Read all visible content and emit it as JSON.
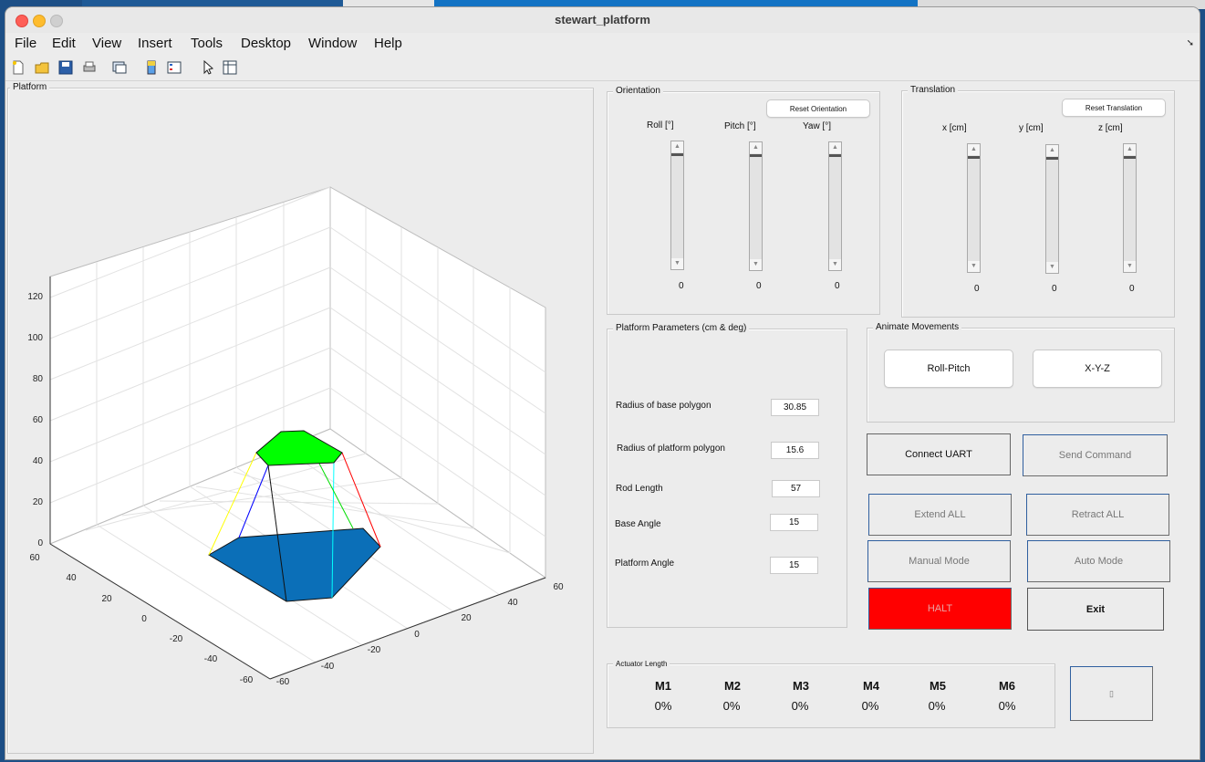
{
  "window": {
    "title": "stewart_platform"
  },
  "menu": [
    "File",
    "Edit",
    "View",
    "Insert",
    "Tools",
    "Desktop",
    "Window",
    "Help"
  ],
  "platform_panel": {
    "title": "Platform"
  },
  "orientation": {
    "title": "Orientation",
    "reset_label": "Reset Orientation",
    "sliders": [
      {
        "label": "Roll [°]",
        "value": "0"
      },
      {
        "label": "Pitch [°]",
        "value": "0"
      },
      {
        "label": "Yaw [°]",
        "value": "0"
      }
    ]
  },
  "translation": {
    "title": "Translation",
    "reset_label": "Reset Translation",
    "sliders": [
      {
        "label": "x [cm]",
        "value": "0"
      },
      {
        "label": "y [cm]",
        "value": "0"
      },
      {
        "label": "z [cm]",
        "value": "0"
      }
    ]
  },
  "params": {
    "title": "Platform Parameters (cm & deg)",
    "fields": [
      {
        "label": "Radius of base polygon",
        "value": "30.85"
      },
      {
        "label": "Radius of platform polygon",
        "value": "15.6"
      },
      {
        "label": "Rod Length",
        "value": "57"
      },
      {
        "label": "Base Angle",
        "value": "15"
      },
      {
        "label": "Platform Angle",
        "value": "15"
      }
    ]
  },
  "animate": {
    "title": "Animate Movements",
    "roll_pitch": "Roll-Pitch",
    "xyz": "X-Y-Z"
  },
  "controls": {
    "connect_uart": "Connect UART",
    "send_command": "Send Command",
    "extend_all": "Extend ALL",
    "retract_all": "Retract ALL",
    "manual_mode": "Manual Mode",
    "auto_mode": "Auto Mode",
    "halt": "HALT",
    "exit": "Exit",
    "halt_color": "#ff0000"
  },
  "actuators": {
    "title": "Actuator Length",
    "items": [
      {
        "name": "M1",
        "value": "0%"
      },
      {
        "name": "M2",
        "value": "0%"
      },
      {
        "name": "M3",
        "value": "0%"
      },
      {
        "name": "M4",
        "value": "0%"
      },
      {
        "name": "M5",
        "value": "0%"
      },
      {
        "name": "M6",
        "value": "0%"
      }
    ]
  },
  "status_button": {
    "label": "▯"
  },
  "plot": {
    "z_ticks": [
      "0",
      "20",
      "40",
      "60",
      "80",
      "100",
      "120"
    ],
    "x_ticks": [
      "60",
      "40",
      "20",
      "0",
      "-20",
      "-40",
      "-60"
    ],
    "y_ticks": [
      "-60",
      "-40",
      "-20",
      "0",
      "20",
      "40",
      "60"
    ],
    "base_color": "#0b6fb8",
    "top_color": "#00ff00"
  }
}
